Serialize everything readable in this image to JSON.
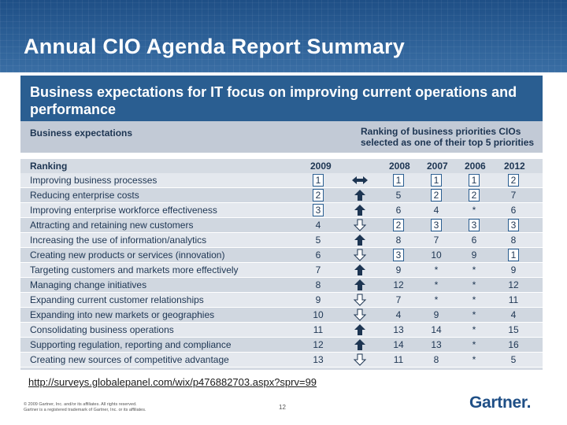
{
  "slide": {
    "title": "Annual CIO Agenda Report Summary",
    "url": "http://surveys.globalepanel.com/wix/p476882703.aspx?sprv=99",
    "copyright_line1": "© 2009 Gartner, Inc. and/or its affiliates. All rights reserved.",
    "copyright_line2": "Gartner is a registered trademark of Gartner, Inc. or its affiliates.",
    "page_number": "12",
    "logo": "Gartner."
  },
  "panel": {
    "title": "Business expectations for IT focus on improving current operations and performance",
    "left_subhead": "Business expectations",
    "right_subhead": "Ranking of business priorities CIOs selected as one of their top 5 priorities",
    "columns": {
      "ranking": "Ranking",
      "y2009": "2009",
      "y2008": "2008",
      "y2007": "2007",
      "y2006": "2006",
      "y2012": "2012"
    }
  },
  "rows": [
    {
      "label": "Improving business processes",
      "r2009": "1",
      "arrow": "both",
      "r2008": "1",
      "r2007": "1",
      "r2006": "1",
      "r2012": "2",
      "box": [
        true,
        true,
        true,
        true,
        true
      ]
    },
    {
      "label": "Reducing enterprise costs",
      "r2009": "2",
      "arrow": "up",
      "r2008": "5",
      "r2007": "2",
      "r2006": "2",
      "r2012": "7",
      "box": [
        true,
        false,
        true,
        true,
        false
      ]
    },
    {
      "label": "Improving enterprise workforce effectiveness",
      "r2009": "3",
      "arrow": "up",
      "r2008": "6",
      "r2007": "4",
      "r2006": "*",
      "r2012": "6",
      "box": [
        true,
        false,
        false,
        false,
        false
      ]
    },
    {
      "label": "Attracting and retaining new customers",
      "r2009": "4",
      "arrow": "down",
      "r2008": "2",
      "r2007": "3",
      "r2006": "3",
      "r2012": "3",
      "box": [
        false,
        true,
        true,
        true,
        true
      ]
    },
    {
      "label": "Increasing the use of information/analytics",
      "r2009": "5",
      "arrow": "up",
      "r2008": "8",
      "r2007": "7",
      "r2006": "6",
      "r2012": "8",
      "box": [
        false,
        false,
        false,
        false,
        false
      ]
    },
    {
      "label": "Creating new products or services (innovation)",
      "r2009": "6",
      "arrow": "down",
      "r2008": "3",
      "r2007": "10",
      "r2006": "9",
      "r2012": "1",
      "box": [
        false,
        true,
        false,
        false,
        true
      ]
    },
    {
      "label": "Targeting customers and markets more effectively",
      "r2009": "7",
      "arrow": "up",
      "r2008": "9",
      "r2007": "*",
      "r2006": "*",
      "r2012": "9",
      "box": [
        false,
        false,
        false,
        false,
        false
      ]
    },
    {
      "label": "Managing change initiatives",
      "r2009": "8",
      "arrow": "up",
      "r2008": "12",
      "r2007": "*",
      "r2006": "*",
      "r2012": "12",
      "box": [
        false,
        false,
        false,
        false,
        false
      ]
    },
    {
      "label": "Expanding current customer relationships",
      "r2009": "9",
      "arrow": "down",
      "r2008": "7",
      "r2007": "*",
      "r2006": "*",
      "r2012": "11",
      "box": [
        false,
        false,
        false,
        false,
        false
      ]
    },
    {
      "label": "Expanding into new markets or geographies",
      "r2009": "10",
      "arrow": "down",
      "r2008": "4",
      "r2007": "9",
      "r2006": "*",
      "r2012": "4",
      "box": [
        false,
        false,
        false,
        false,
        false
      ]
    },
    {
      "label": "Consolidating business operations",
      "r2009": "11",
      "arrow": "up",
      "r2008": "13",
      "r2007": "14",
      "r2006": "*",
      "r2012": "15",
      "box": [
        false,
        false,
        false,
        false,
        false
      ]
    },
    {
      "label": "Supporting regulation, reporting and compliance",
      "r2009": "12",
      "arrow": "up",
      "r2008": "14",
      "r2007": "13",
      "r2006": "*",
      "r2012": "16",
      "box": [
        false,
        false,
        false,
        false,
        false
      ]
    },
    {
      "label": "Creating new sources of competitive advantage",
      "r2009": "13",
      "arrow": "down",
      "r2008": "11",
      "r2007": "8",
      "r2006": "*",
      "r2012": "5",
      "box": [
        false,
        false,
        false,
        false,
        false
      ]
    }
  ],
  "colors": {
    "banner": "#2a5d94",
    "panel_header": "#2a5e91",
    "text": "#1d3552",
    "arrow": "#1d3552"
  }
}
